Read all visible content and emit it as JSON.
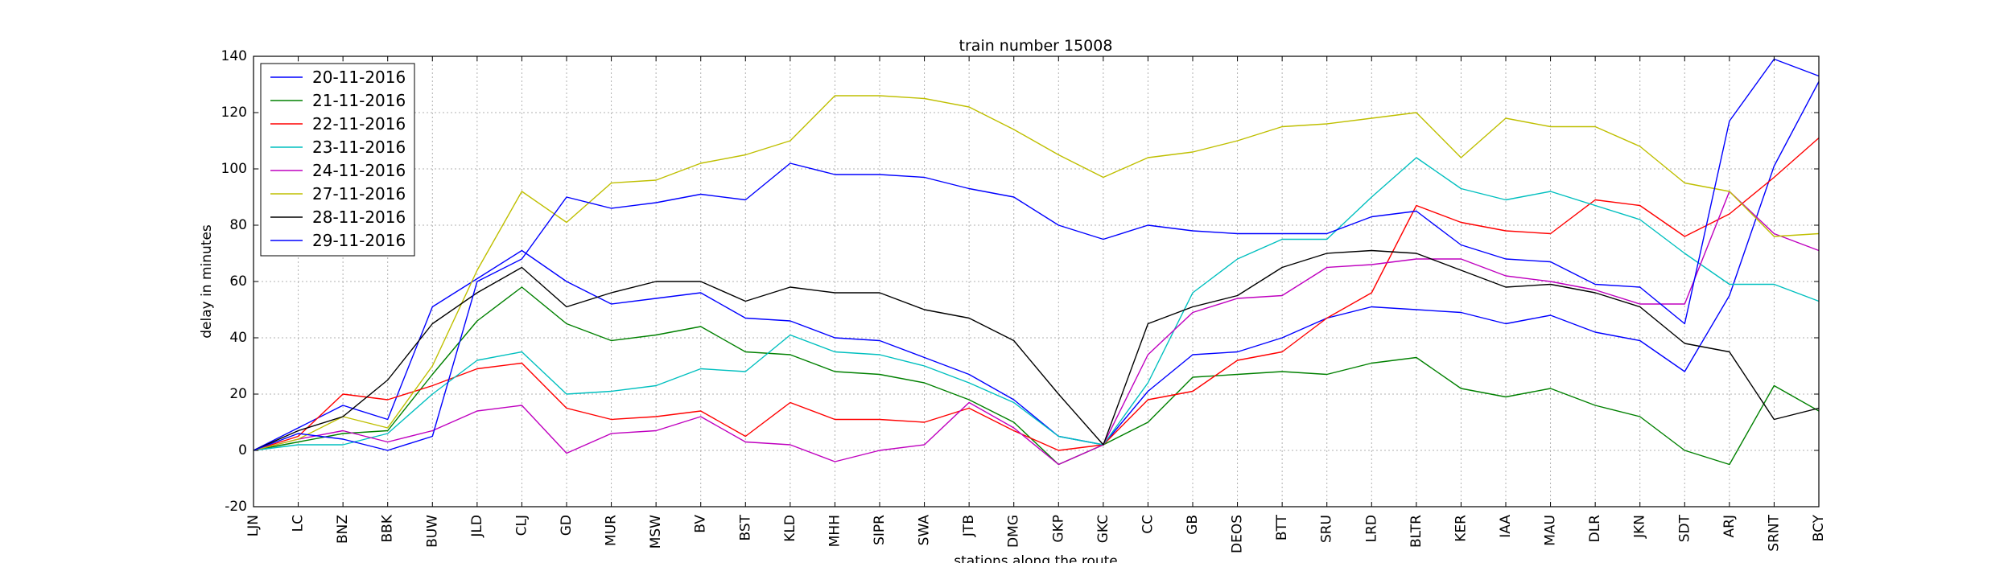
{
  "chart_data": {
    "type": "line",
    "title": "train number 15008",
    "xlabel": "stations along the route",
    "ylabel": "delay in minutes",
    "ylim": [
      -20,
      140
    ],
    "yticks": [
      -20,
      0,
      20,
      40,
      60,
      80,
      100,
      120,
      140
    ],
    "grid": true,
    "legend_position": "top-left",
    "categories": [
      "LJN",
      "LC",
      "BNZ",
      "BBK",
      "BUW",
      "JLD",
      "CLJ",
      "GD",
      "MUR",
      "MSW",
      "BV",
      "BST",
      "KLD",
      "MHH",
      "SIPR",
      "SWA",
      "JTB",
      "DMG",
      "GKP",
      "GKC",
      "CC",
      "GB",
      "DEOS",
      "BTT",
      "SRU",
      "LRD",
      "BLTR",
      "KER",
      "IAA",
      "MAU",
      "DLR",
      "JKN",
      "SDT",
      "ARJ",
      "SRNT",
      "BCY"
    ],
    "series": [
      {
        "name": "20-11-2016",
        "color": "#0000ff",
        "values": [
          0,
          8,
          16,
          11,
          51,
          61,
          71,
          60,
          52,
          54,
          56,
          47,
          46,
          40,
          39,
          33,
          27,
          18,
          5,
          2,
          21,
          34,
          35,
          40,
          47,
          51,
          50,
          49,
          45,
          48,
          42,
          39,
          28,
          55,
          101,
          131
        ]
      },
      {
        "name": "21-11-2016",
        "color": "#008000",
        "values": [
          0,
          3,
          6,
          7,
          27,
          46,
          58,
          45,
          39,
          41,
          44,
          35,
          34,
          28,
          27,
          24,
          18,
          10,
          -5,
          2,
          10,
          26,
          27,
          28,
          27,
          31,
          33,
          22,
          19,
          22,
          16,
          12,
          0,
          -5,
          23,
          14
        ]
      },
      {
        "name": "22-11-2016",
        "color": "#ff0000",
        "values": [
          0,
          5,
          20,
          18,
          23,
          29,
          31,
          15,
          11,
          12,
          14,
          5,
          17,
          11,
          11,
          10,
          15,
          7,
          0,
          2,
          18,
          21,
          32,
          35,
          47,
          56,
          87,
          81,
          78,
          77,
          89,
          87,
          76,
          84,
          97,
          111
        ]
      },
      {
        "name": "23-11-2016",
        "color": "#00bfbf",
        "values": [
          0,
          2,
          2,
          6,
          20,
          32,
          35,
          20,
          21,
          23,
          29,
          28,
          41,
          35,
          34,
          30,
          24,
          17,
          5,
          2,
          24,
          56,
          68,
          75,
          75,
          90,
          104,
          93,
          89,
          92,
          87,
          82,
          70,
          59,
          59,
          53
        ]
      },
      {
        "name": "24-11-2016",
        "color": "#bf00bf",
        "values": [
          0,
          4,
          7,
          3,
          7,
          14,
          16,
          -1,
          6,
          7,
          12,
          3,
          2,
          -4,
          0,
          2,
          17,
          8,
          -5,
          2,
          34,
          49,
          54,
          55,
          65,
          66,
          68,
          68,
          62,
          60,
          57,
          52,
          52,
          92,
          77,
          71
        ]
      },
      {
        "name": "27-11-2016",
        "color": "#bfbf00",
        "values": [
          0,
          4,
          12,
          8,
          30,
          64,
          92,
          81,
          95,
          96,
          102,
          105,
          110,
          126,
          126,
          125,
          122,
          114,
          105,
          97,
          104,
          106,
          110,
          115,
          116,
          118,
          120,
          104,
          118,
          115,
          115,
          108,
          95,
          92,
          76,
          77
        ]
      },
      {
        "name": "28-11-2016",
        "color": "#000000",
        "values": [
          0,
          7,
          12,
          25,
          45,
          56,
          65,
          51,
          56,
          60,
          60,
          53,
          58,
          56,
          56,
          50,
          47,
          39,
          20,
          2,
          45,
          51,
          55,
          65,
          70,
          71,
          70,
          64,
          58,
          59,
          56,
          51,
          38,
          35,
          11,
          15
        ]
      },
      {
        "name": "29-11-2016",
        "color": "#0000ff",
        "values": [
          0,
          6,
          4,
          0,
          5,
          60,
          68,
          90,
          86,
          88,
          91,
          89,
          102,
          98,
          98,
          97,
          93,
          90,
          80,
          75,
          80,
          78,
          77,
          77,
          77,
          83,
          85,
          73,
          68,
          67,
          59,
          58,
          45,
          117,
          139,
          133
        ]
      }
    ]
  }
}
